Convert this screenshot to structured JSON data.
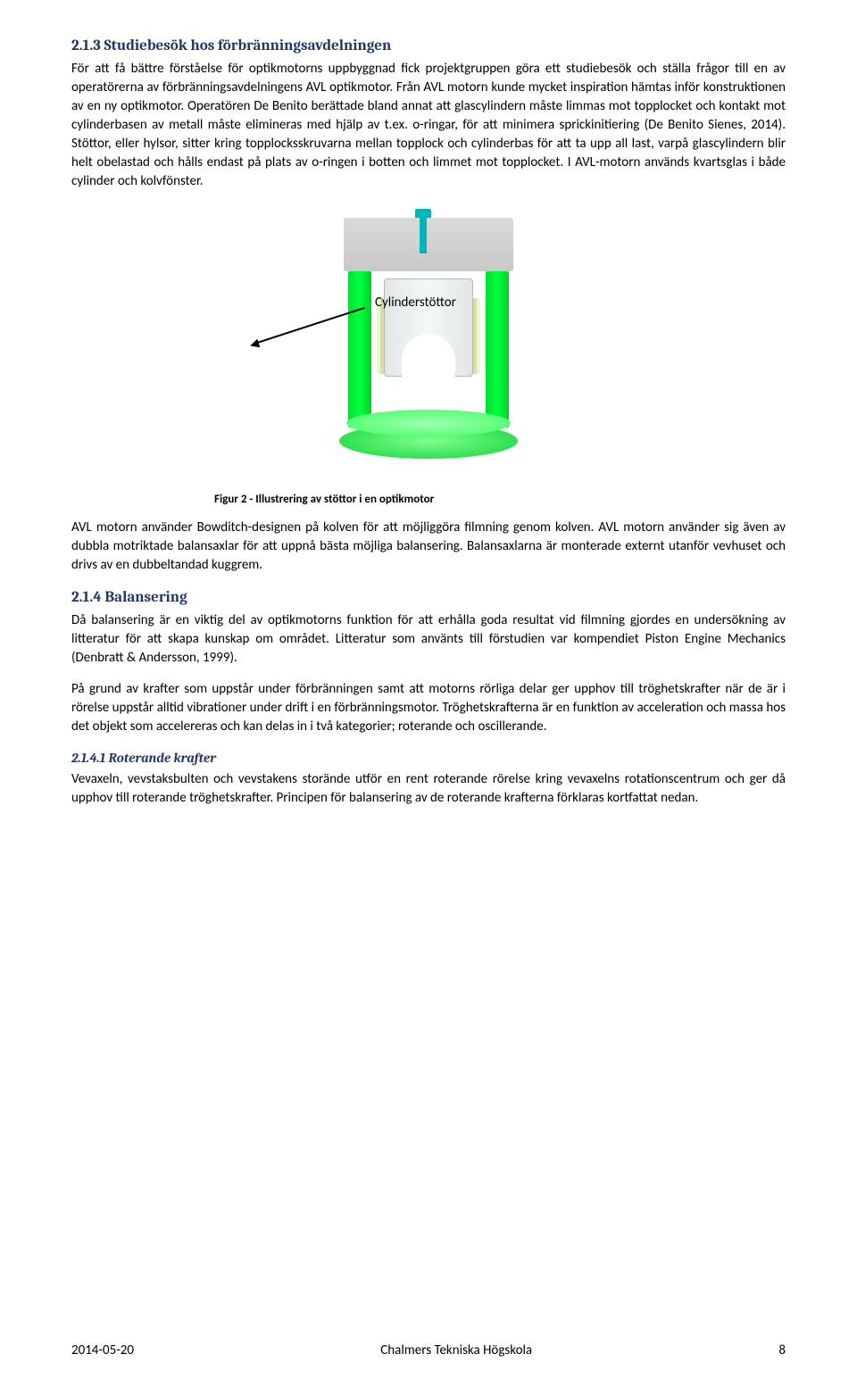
{
  "section_2_1_3": {
    "heading": "2.1.3   Studiebesök hos förbränningsavdelningen",
    "body": "För att få bättre förståelse för optikmotorns uppbyggnad fick projektgruppen göra ett studiebesök och ställa frågor till en av operatörerna av förbränningsavdelningens AVL optikmotor. Från AVL motorn kunde mycket inspiration hämtas inför konstruktionen av en ny optikmotor. Operatören De Benito berättade bland annat att glascylindern måste limmas mot topplocket och kontakt mot cylinderbasen av metall måste elimineras med hjälp av t.ex. o-ringar, för att minimera sprickinitiering (De Benito Sienes, 2014). Stöttor, eller hylsor, sitter kring topplocksskruvarna mellan topplock och cylinderbas för att ta upp all last, varpå glascylindern blir helt obelastad och hålls endast på plats av o-ringen i botten och limmet mot topplocket. I AVL-motorn används kvartsglas i både cylinder och kolvfönster."
  },
  "figure": {
    "callout_label": "Cylinderstöttor",
    "caption": "Figur 2 - Illustrering av stöttor i en optikmotor"
  },
  "post_figure_text": "AVL motorn använder Bowditch-designen på kolven för att möjliggöra filmning genom kolven. AVL motorn använder sig även av dubbla motriktade balansaxlar för att uppnå bästa möjliga balansering. Balansaxlarna är monterade externt utanför vevhuset och drivs av en dubbeltandad kuggrem.",
  "section_2_1_4": {
    "heading": "2.1.4   Balansering",
    "body1": "Då balansering är en viktig del av optikmotorns funktion för att erhålla goda resultat vid filmning gjordes en undersökning av litteratur för att skapa kunskap om området. Litteratur som använts till förstudien var kompendiet Piston Engine Mechanics (Denbratt & Andersson, 1999).",
    "body2": "På grund av krafter som uppstår under förbränningen samt att motorns rörliga delar ger upphov till tröghetskrafter när de är i rörelse uppstår alltid vibrationer under drift i en förbränningsmotor. Tröghetskrafterna är en funktion av acceleration och massa hos det objekt som accelereras och kan delas in i två kategorier; roterande och oscillerande."
  },
  "section_2_1_4_1": {
    "heading": "2.1.4.1    Roterande krafter",
    "body": "Vevaxeln, vevstaksbulten och vevstakens storände utför en rent roterande rörelse kring vevaxelns rotationscentrum och ger då upphov till roterande tröghetskrafter. Principen för balansering av de roterande krafterna förklaras kortfattat nedan."
  },
  "footer": {
    "date": "2014-05-20",
    "institution": "Chalmers Tekniska Högskola",
    "page": "8"
  }
}
